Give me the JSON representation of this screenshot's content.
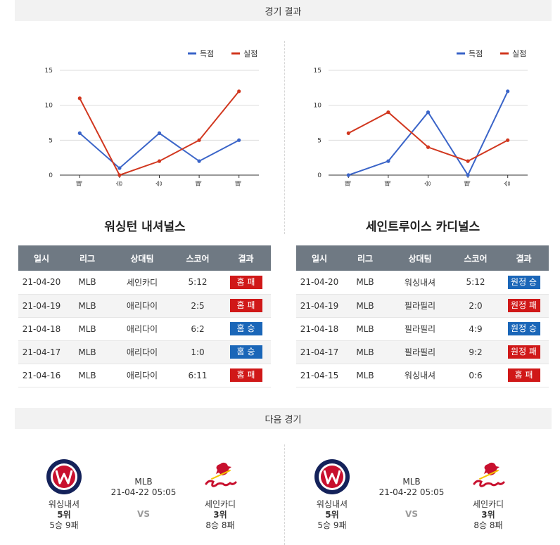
{
  "headers": {
    "results": "경기 결과",
    "next": "다음 경기"
  },
  "legend": {
    "scored": "득점",
    "allowed": "실점"
  },
  "colors": {
    "scored": "#3a64c8",
    "allowed": "#d1371f",
    "win": "#1a66b8",
    "loss": "#d01818",
    "header": "#6f7983"
  },
  "chart_data": [
    {
      "type": "line",
      "categories": [
        "패",
        "승",
        "승",
        "패",
        "패"
      ],
      "ylim": [
        0,
        15
      ],
      "yticks": [
        0,
        5,
        10,
        15
      ],
      "grid": true,
      "legend_position": "top-right",
      "series": [
        {
          "name": "득점",
          "values": [
            6,
            1,
            6,
            2,
            5
          ]
        },
        {
          "name": "실점",
          "values": [
            11,
            0,
            2,
            5,
            12
          ]
        }
      ]
    },
    {
      "type": "line",
      "categories": [
        "패",
        "패",
        "승",
        "패",
        "승"
      ],
      "ylim": [
        0,
        15
      ],
      "yticks": [
        0,
        5,
        10,
        15
      ],
      "grid": true,
      "legend_position": "top-right",
      "series": [
        {
          "name": "득점",
          "values": [
            0,
            2,
            9,
            0,
            12
          ]
        },
        {
          "name": "실점",
          "values": [
            6,
            9,
            4,
            2,
            5
          ]
        }
      ]
    }
  ],
  "teams": [
    {
      "title": "워싱턴 내셔널스",
      "columns": [
        "일시",
        "리그",
        "상대팀",
        "스코어",
        "결과"
      ],
      "rows": [
        {
          "date": "21-04-20",
          "league": "MLB",
          "opponent": "세인카디",
          "score": "5:12",
          "result": "홈 패",
          "win": false
        },
        {
          "date": "21-04-19",
          "league": "MLB",
          "opponent": "애리다이",
          "score": "2:5",
          "result": "홈 패",
          "win": false
        },
        {
          "date": "21-04-18",
          "league": "MLB",
          "opponent": "애리다이",
          "score": "6:2",
          "result": "홈 승",
          "win": true
        },
        {
          "date": "21-04-17",
          "league": "MLB",
          "opponent": "애리다이",
          "score": "1:0",
          "result": "홈 승",
          "win": true
        },
        {
          "date": "21-04-16",
          "league": "MLB",
          "opponent": "애리다이",
          "score": "6:11",
          "result": "홈 패",
          "win": false
        }
      ]
    },
    {
      "title": "세인트루이스 카디널스",
      "columns": [
        "일시",
        "리그",
        "상대팀",
        "스코어",
        "결과"
      ],
      "rows": [
        {
          "date": "21-04-20",
          "league": "MLB",
          "opponent": "워싱내셔",
          "score": "5:12",
          "result": "원정 승",
          "win": true
        },
        {
          "date": "21-04-19",
          "league": "MLB",
          "opponent": "필라필리",
          "score": "2:0",
          "result": "원정 패",
          "win": false
        },
        {
          "date": "21-04-18",
          "league": "MLB",
          "opponent": "필라필리",
          "score": "4:9",
          "result": "원정 승",
          "win": true
        },
        {
          "date": "21-04-17",
          "league": "MLB",
          "opponent": "필라필리",
          "score": "9:2",
          "result": "원정 패",
          "win": false
        },
        {
          "date": "21-04-15",
          "league": "MLB",
          "opponent": "워싱내셔",
          "score": "0:6",
          "result": "홈 패",
          "win": false
        }
      ]
    }
  ],
  "next_games": [
    {
      "league": "MLB",
      "datetime": "21-04-22 05:05",
      "vs": "VS",
      "home": {
        "name": "워싱내셔",
        "rank": "5위",
        "record": "5승 9패",
        "logo_text": "WASHINGTON NATIONALS"
      },
      "away": {
        "name": "세인카디",
        "rank": "3위",
        "record": "8승 8패",
        "logo_text": "Cardinals"
      }
    },
    {
      "league": "MLB",
      "datetime": "21-04-22 05:05",
      "vs": "VS",
      "home": {
        "name": "워싱내셔",
        "rank": "5위",
        "record": "5승 9패",
        "logo_text": "WASHINGTON NATIONALS"
      },
      "away": {
        "name": "세인카디",
        "rank": "3위",
        "record": "8승 8패",
        "logo_text": "Cardinals"
      }
    }
  ]
}
